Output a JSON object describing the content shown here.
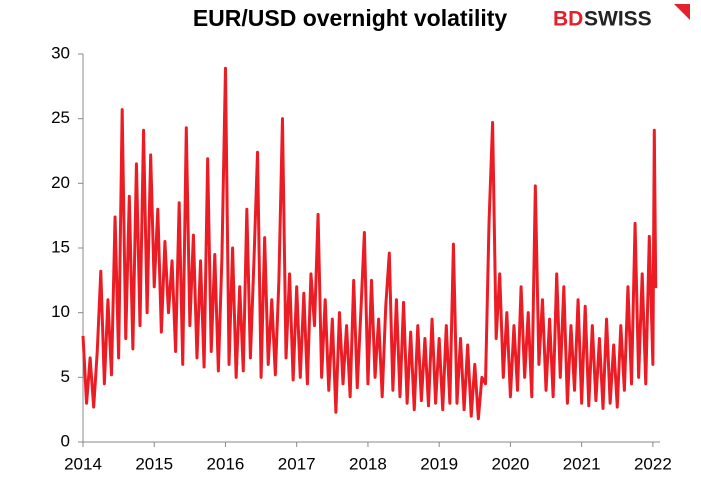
{
  "chart_data": {
    "type": "line",
    "title": "EUR/USD overnight volatility",
    "brand": [
      "BD",
      "SWISS"
    ],
    "color": "#ec1c24",
    "x": [
      2014.0,
      2014.05,
      2014.1,
      2014.15,
      2014.2,
      2014.25,
      2014.3,
      2014.35,
      2014.4,
      2014.45,
      2014.5,
      2014.55,
      2014.6,
      2014.65,
      2014.7,
      2014.75,
      2014.8,
      2014.85,
      2014.9,
      2014.95,
      2015.0,
      2015.05,
      2015.1,
      2015.15,
      2015.2,
      2015.25,
      2015.3,
      2015.35,
      2015.4,
      2015.45,
      2015.5,
      2015.55,
      2015.6,
      2015.65,
      2015.7,
      2015.75,
      2015.8,
      2015.85,
      2015.9,
      2015.95,
      2016.0,
      2016.05,
      2016.1,
      2016.15,
      2016.2,
      2016.25,
      2016.3,
      2016.35,
      2016.4,
      2016.45,
      2016.5,
      2016.55,
      2016.6,
      2016.65,
      2016.7,
      2016.75,
      2016.8,
      2016.85,
      2016.9,
      2016.95,
      2017.0,
      2017.05,
      2017.1,
      2017.15,
      2017.2,
      2017.25,
      2017.3,
      2017.35,
      2017.4,
      2017.45,
      2017.5,
      2017.55,
      2017.6,
      2017.65,
      2017.7,
      2017.75,
      2017.8,
      2017.85,
      2017.9,
      2017.95,
      2018.0,
      2018.05,
      2018.1,
      2018.15,
      2018.2,
      2018.25,
      2018.3,
      2018.35,
      2018.4,
      2018.45,
      2018.5,
      2018.55,
      2018.6,
      2018.65,
      2018.7,
      2018.75,
      2018.8,
      2018.85,
      2018.9,
      2018.95,
      2019.0,
      2019.05,
      2019.1,
      2019.15,
      2019.2,
      2019.25,
      2019.3,
      2019.35,
      2019.4,
      2019.45,
      2019.5,
      2019.55,
      2019.6,
      2019.65,
      2019.7,
      2019.75,
      2019.8,
      2019.85,
      2019.9,
      2019.95,
      2020.0,
      2020.05,
      2020.1,
      2020.15,
      2020.2,
      2020.25,
      2020.3,
      2020.35,
      2020.4,
      2020.45,
      2020.5,
      2020.55,
      2020.6,
      2020.65,
      2020.7,
      2020.75,
      2020.8,
      2020.85,
      2020.9,
      2020.95,
      2021.0,
      2021.05,
      2021.1,
      2021.15,
      2021.2,
      2021.25,
      2021.3,
      2021.35,
      2021.4,
      2021.45,
      2021.5,
      2021.55,
      2021.6,
      2021.65,
      2021.7,
      2021.75,
      2021.8,
      2021.85,
      2021.9,
      2021.95,
      2022.0,
      2022.02,
      2022.04
    ],
    "values": [
      8.2,
      3.0,
      6.5,
      2.7,
      7.0,
      13.2,
      4.5,
      11.0,
      5.2,
      17.4,
      6.5,
      25.7,
      8.0,
      19.0,
      7.2,
      21.5,
      9.0,
      24.1,
      10.0,
      22.2,
      12.0,
      18.0,
      8.5,
      15.5,
      10.0,
      14.0,
      7.0,
      18.5,
      6.0,
      24.3,
      9.0,
      16.0,
      6.5,
      14.0,
      5.8,
      21.9,
      7.0,
      14.5,
      5.5,
      14.2,
      28.9,
      6.0,
      15.0,
      5.0,
      12.0,
      5.5,
      18.0,
      6.5,
      14.0,
      22.4,
      5.0,
      15.8,
      6.0,
      11.0,
      5.2,
      12.5,
      25.0,
      6.5,
      13.0,
      4.8,
      12.0,
      5.0,
      11.5,
      4.5,
      13.0,
      9.0,
      17.6,
      5.0,
      11.0,
      4.0,
      9.5,
      2.3,
      10.0,
      4.5,
      9.0,
      3.5,
      12.5,
      4.2,
      10.0,
      16.2,
      4.5,
      12.5,
      5.0,
      9.5,
      3.5,
      10.5,
      14.6,
      4.0,
      11.0,
      3.5,
      10.8,
      3.0,
      8.5,
      2.5,
      9.0,
      3.2,
      8.0,
      2.8,
      9.5,
      3.0,
      8.0,
      2.5,
      9.0,
      3.0,
      15.3,
      3.0,
      8.0,
      2.5,
      7.5,
      2.0,
      6.0,
      1.8,
      5.0,
      4.5,
      17.0,
      24.7,
      8.0,
      13.0,
      5.0,
      10.0,
      3.5,
      9.0,
      4.0,
      12.0,
      5.0,
      10.0,
      3.5,
      19.8,
      6.0,
      11.0,
      4.0,
      9.5,
      3.5,
      13.0,
      5.0,
      12.0,
      3.0,
      9.0,
      4.0,
      11.0,
      3.0,
      10.5,
      2.8,
      9.0,
      3.2,
      8.0,
      2.6,
      9.5,
      3.0,
      7.5,
      2.7,
      9.0,
      4.0,
      12.0,
      4.5,
      16.9,
      5.0,
      13.0,
      4.5,
      15.9,
      6.0,
      24.1,
      11.9
    ],
    "xlim": [
      2014,
      2022.1
    ],
    "xticks": [
      2014,
      2015,
      2016,
      2017,
      2018,
      2019,
      2020,
      2021,
      2022
    ],
    "ylim": [
      0,
      30
    ],
    "yticks": [
      0,
      5,
      10,
      15,
      20,
      25,
      30
    ],
    "grid": false
  }
}
